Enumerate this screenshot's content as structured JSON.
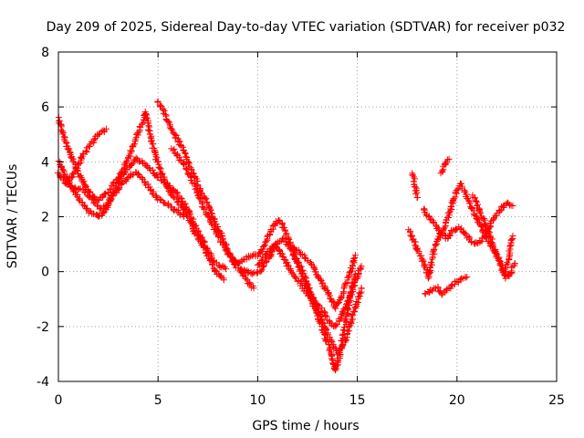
{
  "chart_data": {
    "type": "scatter",
    "title": "Day 209 of 2025, Sidereal Day-to-day VTEC variation (SDTVAR) for receiver p032",
    "xlabel": "GPS time / hours",
    "ylabel": "SDTVAR / TECUs",
    "xlim": [
      0,
      25
    ],
    "ylim": [
      -4,
      8
    ],
    "xticks": [
      0,
      5,
      10,
      15,
      20,
      25
    ],
    "yticks": [
      -4,
      -2,
      0,
      2,
      4,
      6,
      8
    ],
    "grid": true,
    "marker": "+",
    "colors": {
      "series": "#ff0000",
      "axis": "#000000",
      "grid": "#a0a0a0"
    },
    "series": [
      {
        "name": "track-1",
        "points": [
          [
            0.0,
            5.6
          ],
          [
            0.2,
            5.1
          ],
          [
            0.4,
            4.6
          ],
          [
            0.7,
            4.1
          ],
          [
            1.0,
            3.6
          ],
          [
            1.3,
            3.2
          ],
          [
            1.6,
            2.9
          ],
          [
            1.9,
            2.6
          ],
          [
            2.2,
            2.7
          ],
          [
            2.6,
            3.0
          ],
          [
            3.0,
            3.4
          ],
          [
            3.3,
            3.8
          ],
          [
            3.6,
            4.3
          ],
          [
            3.9,
            4.9
          ],
          [
            4.2,
            5.4
          ],
          [
            4.4,
            5.8
          ],
          [
            4.6,
            5.0
          ],
          [
            4.8,
            4.4
          ],
          [
            5.0,
            3.9
          ],
          [
            5.3,
            3.4
          ],
          [
            5.6,
            2.9
          ],
          [
            5.9,
            2.6
          ],
          [
            6.2,
            2.4
          ],
          [
            6.5,
            2.0
          ],
          [
            6.8,
            1.5
          ],
          [
            7.1,
            1.1
          ],
          [
            7.4,
            0.7
          ],
          [
            7.7,
            0.3
          ],
          [
            8.0,
            -0.1
          ],
          [
            8.3,
            -0.3
          ]
        ]
      },
      {
        "name": "track-2",
        "points": [
          [
            0.0,
            3.6
          ],
          [
            0.3,
            3.3
          ],
          [
            0.6,
            3.1
          ],
          [
            0.9,
            3.0
          ],
          [
            1.2,
            3.0
          ],
          [
            1.5,
            2.8
          ],
          [
            1.8,
            2.5
          ],
          [
            2.1,
            2.3
          ],
          [
            2.4,
            2.4
          ],
          [
            2.7,
            2.8
          ],
          [
            3.0,
            3.2
          ],
          [
            3.3,
            3.6
          ],
          [
            3.6,
            3.9
          ],
          [
            3.9,
            4.1
          ],
          [
            4.2,
            4.0
          ],
          [
            4.5,
            3.8
          ],
          [
            4.8,
            3.6
          ],
          [
            5.1,
            3.4
          ],
          [
            5.4,
            3.2
          ],
          [
            5.7,
            3.0
          ],
          [
            6.0,
            2.8
          ],
          [
            6.3,
            2.5
          ],
          [
            6.6,
            2.1
          ],
          [
            6.9,
            1.6
          ],
          [
            7.2,
            1.2
          ],
          [
            7.5,
            0.8
          ],
          [
            7.8,
            0.4
          ],
          [
            8.1,
            0.2
          ],
          [
            8.4,
            0.1
          ]
        ]
      },
      {
        "name": "track-3",
        "points": [
          [
            0.0,
            4.0
          ],
          [
            0.3,
            3.6
          ],
          [
            0.6,
            3.2
          ],
          [
            0.9,
            2.8
          ],
          [
            1.2,
            2.5
          ],
          [
            1.5,
            2.2
          ],
          [
            1.8,
            2.1
          ],
          [
            2.1,
            2.0
          ],
          [
            2.4,
            2.3
          ],
          [
            2.7,
            2.7
          ],
          [
            3.0,
            3.0
          ],
          [
            3.3,
            3.3
          ],
          [
            3.6,
            3.5
          ],
          [
            3.9,
            3.6
          ],
          [
            4.2,
            3.4
          ],
          [
            4.5,
            3.1
          ],
          [
            4.8,
            2.8
          ],
          [
            5.1,
            2.6
          ],
          [
            5.4,
            2.5
          ],
          [
            5.7,
            2.3
          ],
          [
            6.0,
            2.2
          ],
          [
            6.3,
            2.0
          ]
        ]
      },
      {
        "name": "track-4",
        "points": [
          [
            0.4,
            3.2
          ],
          [
            0.7,
            3.5
          ],
          [
            1.0,
            3.9
          ],
          [
            1.3,
            4.3
          ],
          [
            1.6,
            4.6
          ],
          [
            1.9,
            4.9
          ],
          [
            2.2,
            5.1
          ],
          [
            2.4,
            5.2
          ]
        ]
      },
      {
        "name": "track-5",
        "points": [
          [
            5.0,
            6.2
          ],
          [
            5.3,
            5.8
          ],
          [
            5.6,
            5.3
          ],
          [
            5.9,
            4.9
          ],
          [
            6.2,
            4.5
          ],
          [
            6.5,
            4.0
          ],
          [
            6.8,
            3.5
          ],
          [
            7.1,
            3.0
          ],
          [
            7.4,
            2.6
          ],
          [
            7.7,
            2.1
          ],
          [
            8.0,
            1.6
          ],
          [
            8.3,
            1.1
          ],
          [
            8.6,
            0.6
          ],
          [
            8.9,
            0.2
          ],
          [
            9.2,
            0.0
          ],
          [
            9.5,
            -0.4
          ],
          [
            9.8,
            -0.6
          ]
        ]
      },
      {
        "name": "track-6",
        "points": [
          [
            5.7,
            4.5
          ],
          [
            6.0,
            4.2
          ],
          [
            6.3,
            3.9
          ],
          [
            6.6,
            3.5
          ],
          [
            6.9,
            3.0
          ],
          [
            7.2,
            2.5
          ],
          [
            7.5,
            2.0
          ],
          [
            7.8,
            1.6
          ],
          [
            8.1,
            1.2
          ],
          [
            8.4,
            0.8
          ],
          [
            8.7,
            0.5
          ],
          [
            9.0,
            0.3
          ]
        ]
      },
      {
        "name": "track-7",
        "points": [
          [
            8.8,
            0.4
          ],
          [
            9.1,
            0.3
          ],
          [
            9.4,
            0.5
          ],
          [
            9.7,
            0.6
          ],
          [
            10.0,
            0.6
          ],
          [
            10.3,
            0.9
          ],
          [
            10.6,
            1.4
          ],
          [
            10.9,
            1.8
          ],
          [
            11.1,
            1.9
          ],
          [
            11.3,
            1.6
          ],
          [
            11.6,
            1.1
          ],
          [
            11.9,
            0.5
          ],
          [
            12.2,
            0.0
          ],
          [
            12.5,
            -0.6
          ],
          [
            12.8,
            -1.2
          ],
          [
            13.1,
            -1.8
          ],
          [
            13.4,
            -2.4
          ],
          [
            13.7,
            -3.0
          ],
          [
            13.9,
            -3.6
          ],
          [
            14.1,
            -3.1
          ],
          [
            14.3,
            -2.3
          ],
          [
            14.5,
            -1.5
          ],
          [
            14.7,
            -0.7
          ],
          [
            14.9,
            -0.1
          ]
        ]
      },
      {
        "name": "track-8",
        "points": [
          [
            9.2,
            0.1
          ],
          [
            9.5,
            0.0
          ],
          [
            9.8,
            -0.1
          ],
          [
            10.1,
            0.0
          ],
          [
            10.4,
            0.3
          ],
          [
            10.7,
            0.7
          ],
          [
            11.0,
            1.1
          ],
          [
            11.3,
            1.2
          ],
          [
            11.6,
            0.9
          ],
          [
            11.9,
            0.5
          ],
          [
            12.2,
            0.1
          ],
          [
            12.5,
            -0.4
          ],
          [
            12.8,
            -1.0
          ],
          [
            13.1,
            -1.6
          ],
          [
            13.4,
            -2.1
          ],
          [
            13.7,
            -2.6
          ],
          [
            14.0,
            -3.0
          ],
          [
            14.3,
            -2.7
          ],
          [
            14.6,
            -2.0
          ],
          [
            14.9,
            -1.3
          ],
          [
            15.2,
            -0.6
          ]
        ]
      },
      {
        "name": "track-9",
        "points": [
          [
            10.0,
            0.2
          ],
          [
            10.3,
            0.5
          ],
          [
            10.6,
            0.8
          ],
          [
            10.9,
            1.0
          ],
          [
            11.2,
            0.6
          ],
          [
            11.5,
            0.2
          ],
          [
            11.8,
            -0.1
          ],
          [
            12.1,
            -0.4
          ],
          [
            12.4,
            -0.7
          ],
          [
            12.7,
            -1.0
          ],
          [
            13.0,
            -1.2
          ],
          [
            13.3,
            -1.5
          ],
          [
            13.6,
            -1.8
          ],
          [
            13.9,
            -2.0
          ],
          [
            14.2,
            -1.6
          ],
          [
            14.5,
            -1.1
          ],
          [
            14.8,
            -0.6
          ],
          [
            15.1,
            0.0
          ],
          [
            15.2,
            0.2
          ]
        ]
      },
      {
        "name": "track-10",
        "points": [
          [
            11.8,
            0.9
          ],
          [
            12.1,
            0.7
          ],
          [
            12.4,
            0.5
          ],
          [
            12.7,
            0.3
          ],
          [
            13.0,
            -0.1
          ],
          [
            13.3,
            -0.5
          ],
          [
            13.6,
            -0.9
          ],
          [
            13.9,
            -1.3
          ],
          [
            14.2,
            -0.9
          ],
          [
            14.5,
            -0.3
          ],
          [
            14.8,
            0.3
          ],
          [
            14.9,
            0.6
          ]
        ]
      },
      {
        "name": "track-11",
        "points": [
          [
            17.8,
            3.6
          ],
          [
            17.9,
            3.1
          ],
          [
            18.0,
            2.7
          ]
        ]
      },
      {
        "name": "track-12",
        "points": [
          [
            17.6,
            1.5
          ],
          [
            17.9,
            1.0
          ],
          [
            18.2,
            0.5
          ],
          [
            18.4,
            0.2
          ],
          [
            18.6,
            -0.2
          ],
          [
            18.8,
            0.6
          ],
          [
            19.0,
            1.1
          ],
          [
            19.3,
            1.5
          ],
          [
            19.6,
            2.1
          ],
          [
            19.9,
            2.8
          ],
          [
            20.2,
            3.2
          ],
          [
            20.4,
            2.9
          ],
          [
            20.7,
            2.4
          ],
          [
            21.0,
            1.9
          ],
          [
            21.3,
            1.5
          ],
          [
            21.6,
            1.1
          ],
          [
            21.9,
            0.7
          ],
          [
            22.2,
            0.3
          ],
          [
            22.4,
            -0.2
          ],
          [
            22.6,
            0.6
          ],
          [
            22.8,
            1.3
          ]
        ]
      },
      {
        "name": "track-13",
        "points": [
          [
            18.3,
            2.3
          ],
          [
            18.6,
            2.0
          ],
          [
            18.9,
            1.7
          ],
          [
            19.2,
            1.4
          ],
          [
            19.5,
            1.2
          ],
          [
            19.8,
            1.5
          ],
          [
            20.1,
            1.6
          ],
          [
            20.4,
            1.4
          ],
          [
            20.7,
            1.1
          ],
          [
            21.0,
            1.0
          ],
          [
            21.3,
            1.2
          ],
          [
            21.6,
            1.6
          ],
          [
            21.9,
            2.0
          ],
          [
            22.2,
            2.3
          ],
          [
            22.5,
            2.5
          ],
          [
            22.8,
            2.4
          ]
        ]
      },
      {
        "name": "track-14",
        "points": [
          [
            18.4,
            -0.8
          ],
          [
            18.7,
            -0.7
          ],
          [
            19.0,
            -0.6
          ],
          [
            19.3,
            -0.8
          ],
          [
            19.6,
            -0.6
          ],
          [
            19.9,
            -0.4
          ],
          [
            20.2,
            -0.3
          ],
          [
            20.5,
            -0.2
          ]
        ]
      },
      {
        "name": "track-15",
        "points": [
          [
            19.2,
            3.6
          ],
          [
            19.4,
            3.9
          ],
          [
            19.6,
            4.1
          ]
        ]
      },
      {
        "name": "track-16",
        "points": [
          [
            20.8,
            2.8
          ],
          [
            21.1,
            2.3
          ],
          [
            21.4,
            1.8
          ],
          [
            21.7,
            1.2
          ],
          [
            22.0,
            0.6
          ],
          [
            22.3,
            0.1
          ],
          [
            22.6,
            -0.2
          ],
          [
            22.9,
            0.3
          ]
        ]
      }
    ]
  }
}
